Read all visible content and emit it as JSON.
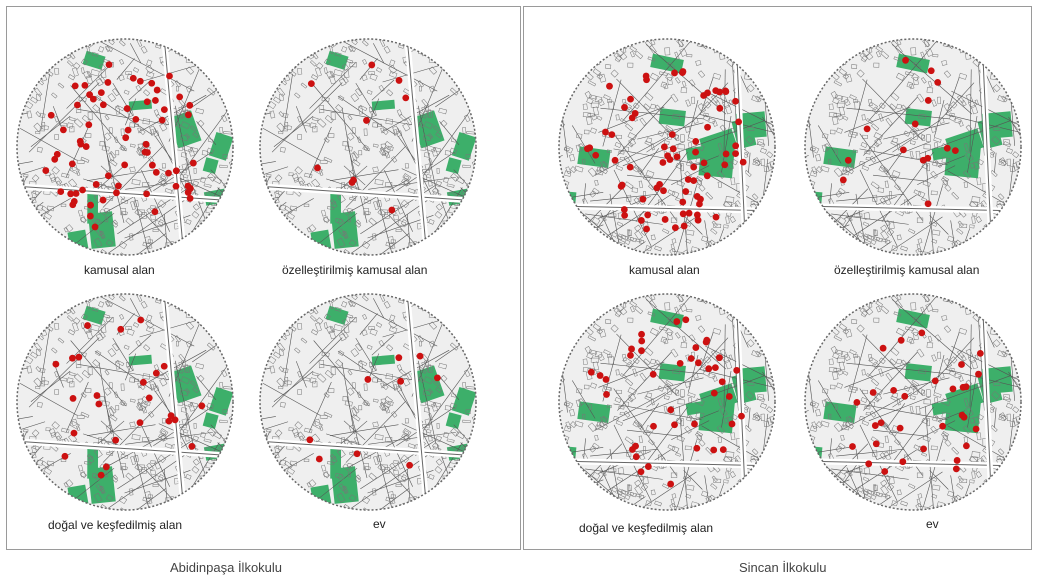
{
  "schools": [
    {
      "name": "Abidinpaşa İlkokulu",
      "maps": [
        {
          "caption": "kamusal alan",
          "point_count": 65
        },
        {
          "caption": "özelleştirilmiş kamusal alan",
          "point_count": 9
        },
        {
          "caption": "doğal ve keşfedilmiş alan",
          "point_count": 24
        },
        {
          "caption": "ev",
          "point_count": 9
        }
      ]
    },
    {
      "name": "Sincan İlkokulu",
      "maps": [
        {
          "caption": "kamusal alan",
          "point_count": 70
        },
        {
          "caption": "özelleştirilmiş kamusal alan",
          "point_count": 14
        },
        {
          "caption": "doğal ve keşfedilmiş alan",
          "point_count": 40
        },
        {
          "caption": "ev",
          "point_count": 30
        }
      ]
    }
  ],
  "colors": {
    "marker": "#cc1111",
    "green_area": "#3daf6a",
    "street_lines": "#555555",
    "map_background": "#efefef",
    "border": "#9a9a9a"
  }
}
